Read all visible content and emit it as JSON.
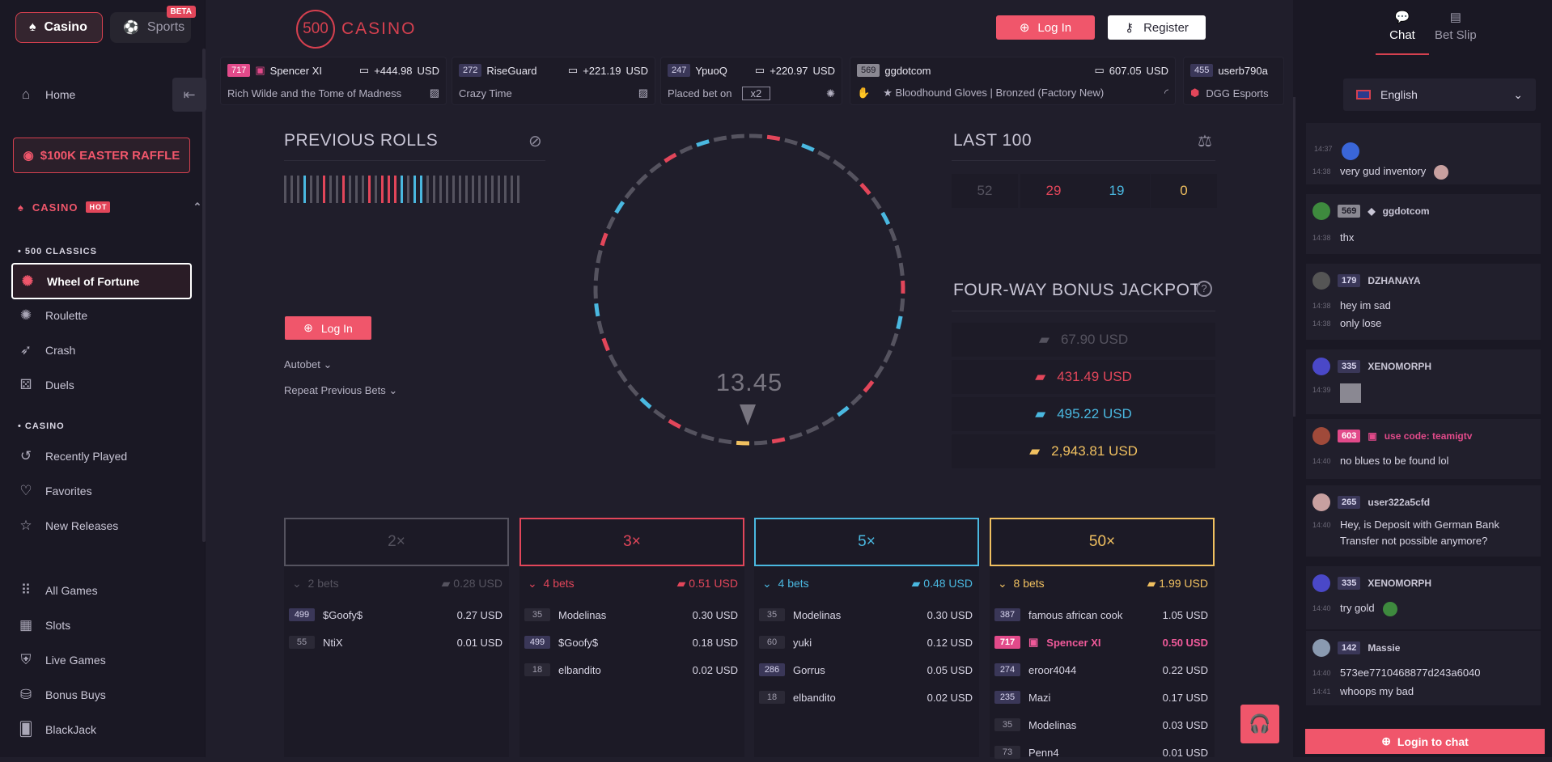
{
  "sidebar": {
    "tabs": {
      "casino": "Casino",
      "sports": "Sports",
      "beta": "BETA"
    },
    "home": "Home",
    "raffle": "$100K EASTER RAFFLE",
    "casino_section": "CASINO",
    "hot": "HOT",
    "classics_head": "• 500 CLASSICS",
    "classics": [
      "Wheel of Fortune",
      "Roulette",
      "Crash",
      "Duels"
    ],
    "casino_head": "• CASINO",
    "casino_items": [
      "Recently Played",
      "Favorites",
      "New Releases"
    ],
    "games": [
      "All Games",
      "Slots",
      "Live Games",
      "Bonus Buys",
      "BlackJack"
    ]
  },
  "header": {
    "logo_num": "500",
    "logo_text": "CASINO",
    "login": "Log In",
    "register": "Register"
  },
  "ticker": [
    {
      "level": "717",
      "user": "Spencer XI",
      "amount": "+444.98",
      "cur": "USD",
      "game": "Rich Wilde and the Tome of Madness"
    },
    {
      "level": "272",
      "user": "RiseGuard",
      "amount": "+221.19",
      "cur": "USD",
      "game": "Crazy Time"
    },
    {
      "level": "247",
      "user": "YpuoQ",
      "amount": "+220.97",
      "cur": "USD",
      "game": "Placed bet on",
      "mult": "x2"
    },
    {
      "level": "569",
      "user": "ggdotcom",
      "amount": "607.05",
      "cur": "USD",
      "game": "★ Bloodhound Gloves | Bronzed (Factory New)"
    },
    {
      "level": "455",
      "user": "userb790a",
      "game": "DGG Esports"
    }
  ],
  "game": {
    "previous_rolls": "PREVIOUS ROLLS",
    "login": "Log In",
    "autobet": "Autobet",
    "repeat": "Repeat Previous Bets",
    "timer": "13.45",
    "last100": "LAST 100",
    "last_counts": [
      "52",
      "29",
      "19",
      "0"
    ],
    "jackpot_title": "FOUR-WAY BONUS JACKPOT",
    "jackpots": [
      "67.90 USD",
      "431.49 USD",
      "495.22 USD",
      "2,943.81 USD"
    ],
    "colors": {
      "grey": "#55535f",
      "red": "#e2465a",
      "blue": "#4ab8e0",
      "gold": "#f0c060"
    }
  },
  "columns": [
    {
      "mult": "2×",
      "bets": "2 bets",
      "total": "0.28 USD",
      "rows": [
        {
          "level": "499",
          "name": "$Goofy$",
          "amt": "0.27 USD"
        },
        {
          "level": "55",
          "name": "NtiX",
          "amt": "0.01 USD"
        }
      ]
    },
    {
      "mult": "3×",
      "bets": "4 bets",
      "total": "0.51 USD",
      "rows": [
        {
          "level": "35",
          "name": "Modelinas",
          "amt": "0.30 USD"
        },
        {
          "level": "499",
          "name": "$Goofy$",
          "amt": "0.18 USD"
        },
        {
          "level": "18",
          "name": "elbandito",
          "amt": "0.02 USD"
        }
      ]
    },
    {
      "mult": "5×",
      "bets": "4 bets",
      "total": "0.48 USD",
      "rows": [
        {
          "level": "35",
          "name": "Modelinas",
          "amt": "0.30 USD"
        },
        {
          "level": "60",
          "name": "yuki",
          "amt": "0.12 USD"
        },
        {
          "level": "286",
          "name": "Gorrus",
          "amt": "0.05 USD"
        },
        {
          "level": "18",
          "name": "elbandito",
          "amt": "0.02 USD"
        }
      ]
    },
    {
      "mult": "50×",
      "bets": "8 bets",
      "total": "1.99 USD",
      "rows": [
        {
          "level": "387",
          "name": "famous african cook",
          "amt": "1.05 USD"
        },
        {
          "level": "717",
          "name": "Spencer XI",
          "amt": "0.50 USD"
        },
        {
          "level": "274",
          "name": "eroor4044",
          "amt": "0.22 USD"
        },
        {
          "level": "235",
          "name": "Mazi",
          "amt": "0.17 USD"
        },
        {
          "level": "35",
          "name": "Modelinas",
          "amt": "0.03 USD"
        },
        {
          "level": "73",
          "name": "Penn4",
          "amt": "0.01 USD"
        }
      ]
    }
  ],
  "right": {
    "chat": "Chat",
    "betslip": "Bet Slip",
    "language": "English",
    "login_chat": "Login to chat",
    "messages": [
      {
        "t1": "14:37",
        "t2": "14:38",
        "text": "very gud inventory"
      },
      {
        "level": "569",
        "user": "ggdotcom",
        "t": "14:38",
        "text": "thx"
      },
      {
        "level": "179",
        "user": "DZHANAYA",
        "t1": "14:38",
        "l1": "hey im sad",
        "t2": "14:38",
        "l2": "only lose"
      },
      {
        "level": "335",
        "user": "XENOMORPH",
        "t": "14:39"
      },
      {
        "level": "603",
        "user": "use code: teamigtv",
        "t": "14:40",
        "text": "no blues to be found lol"
      },
      {
        "level": "265",
        "user": "user322a5cfd",
        "t": "14:40",
        "l1": "Hey, is Deposit with German Bank",
        "l2": "Transfer not possible anymore?"
      },
      {
        "level": "335",
        "user": "XENOMORPH",
        "t": "14:40",
        "text": "try gold"
      },
      {
        "level": "142",
        "user": "Massie",
        "t1": "14:40",
        "l1": "573ee7710468877d243a6040",
        "t2": "14:41",
        "l2": "whoops my bad"
      }
    ]
  }
}
